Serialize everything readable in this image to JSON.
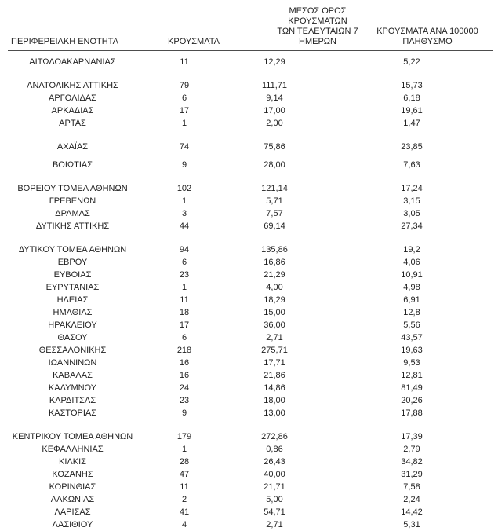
{
  "page": {
    "background": "#ffffff",
    "text_color": "#1f1f1f",
    "rule_color": "#4d4d4d"
  },
  "table": {
    "headers": {
      "region": "ΠΕΡΙΦΕΡΕΙΑΚΗ ΕΝΟΤΗΤΑ",
      "cases": "ΚΡΟΥΣΜΑΤΑ",
      "avg7_lines": [
        "ΜΕΣΟΣ ΟΡΟΣ ΚΡΟΥΣΜΑΤΩΝ",
        "ΤΩΝ ΤΕΛΕΥΤΑΙΩΝ 7",
        "ΗΜΕΡΩΝ"
      ],
      "per100k_lines": [
        "ΚΡΟΥΣΜΑΤΑ ΑΝΑ 100000",
        "ΠΛΗΘΥΣΜΟ"
      ]
    },
    "groups": [
      {
        "gap_before": "none",
        "rows": [
          {
            "region": "ΑΙΤΩΛΟΑΚΑΡΝΑΝΙΑΣ",
            "cases": "11",
            "avg7": "12,29",
            "per100k": "5,22"
          }
        ]
      },
      {
        "gap_before": "normal",
        "rows": [
          {
            "region": "ΑΝΑΤΟΛΙΚΗΣ ΑΤΤΙΚΗΣ",
            "cases": "79",
            "avg7": "111,71",
            "per100k": "15,73"
          },
          {
            "region": "ΑΡΓΟΛΙΔΑΣ",
            "cases": "6",
            "avg7": "9,14",
            "per100k": "6,18"
          },
          {
            "region": "ΑΡΚΑΔΙΑΣ",
            "cases": "17",
            "avg7": "17,00",
            "per100k": "19,61"
          },
          {
            "region": "ΑΡΤΑΣ",
            "cases": "1",
            "avg7": "2,00",
            "per100k": "1,47"
          }
        ]
      },
      {
        "gap_before": "normal",
        "rows": [
          {
            "region": "ΑΧΑΪΑΣ",
            "cases": "74",
            "avg7": "75,86",
            "per100k": "23,85"
          }
        ]
      },
      {
        "gap_before": "small",
        "rows": [
          {
            "region": "ΒΟΙΩΤΙΑΣ",
            "cases": "9",
            "avg7": "28,00",
            "per100k": "7,63"
          }
        ]
      },
      {
        "gap_before": "normal",
        "rows": [
          {
            "region": "ΒΟΡΕΙΟΥ ΤΟΜΕΑ ΑΘΗΝΩΝ",
            "cases": "102",
            "avg7": "121,14",
            "per100k": "17,24"
          },
          {
            "region": "ΓΡΕΒΕΝΩΝ",
            "cases": "1",
            "avg7": "5,71",
            "per100k": "3,15"
          },
          {
            "region": "ΔΡΑΜΑΣ",
            "cases": "3",
            "avg7": "7,57",
            "per100k": "3,05"
          },
          {
            "region": "ΔΥΤΙΚΗΣ ΑΤΤΙΚΗΣ",
            "cases": "44",
            "avg7": "69,14",
            "per100k": "27,34"
          }
        ]
      },
      {
        "gap_before": "normal",
        "rows": [
          {
            "region": "ΔΥΤΙΚΟΥ ΤΟΜΕΑ ΑΘΗΝΩΝ",
            "cases": "94",
            "avg7": "135,86",
            "per100k": "19,2"
          },
          {
            "region": "ΕΒΡΟΥ",
            "cases": "6",
            "avg7": "16,86",
            "per100k": "4,06"
          },
          {
            "region": "ΕΥΒΟΙΑΣ",
            "cases": "23",
            "avg7": "21,29",
            "per100k": "10,91"
          },
          {
            "region": "ΕΥΡΥΤΑΝΙΑΣ",
            "cases": "1",
            "avg7": "4,00",
            "per100k": "4,98"
          },
          {
            "region": "ΗΛΕΙΑΣ",
            "cases": "11",
            "avg7": "18,29",
            "per100k": "6,91"
          },
          {
            "region": "ΗΜΑΘΙΑΣ",
            "cases": "18",
            "avg7": "15,00",
            "per100k": "12,8"
          },
          {
            "region": "ΗΡΑΚΛΕΙΟΥ",
            "cases": "17",
            "avg7": "36,00",
            "per100k": "5,56"
          },
          {
            "region": "ΘΑΣΟΥ",
            "cases": "6",
            "avg7": "2,71",
            "per100k": "43,57"
          },
          {
            "region": "ΘΕΣΣΑΛΟΝΙΚΗΣ",
            "cases": "218",
            "avg7": "275,71",
            "per100k": "19,63"
          },
          {
            "region": "ΙΩΑΝΝΙΝΩΝ",
            "cases": "16",
            "avg7": "17,71",
            "per100k": "9,53"
          },
          {
            "region": "ΚΑΒΑΛΑΣ",
            "cases": "16",
            "avg7": "21,86",
            "per100k": "12,81"
          },
          {
            "region": "ΚΑΛΥΜΝΟΥ",
            "cases": "24",
            "avg7": "14,86",
            "per100k": "81,49"
          },
          {
            "region": "ΚΑΡΔΙΤΣΑΣ",
            "cases": "23",
            "avg7": "18,00",
            "per100k": "20,26"
          },
          {
            "region": "ΚΑΣΤΟΡΙΑΣ",
            "cases": "9",
            "avg7": "13,00",
            "per100k": "17,88"
          }
        ]
      },
      {
        "gap_before": "normal",
        "rows": [
          {
            "region": "ΚΕΝΤΡΙΚΟΥ ΤΟΜΕΑ ΑΘΗΝΩΝ",
            "cases": "179",
            "avg7": "272,86",
            "per100k": "17,39"
          },
          {
            "region": "ΚΕΦΑΛΛΗΝΙΑΣ",
            "cases": "1",
            "avg7": "0,86",
            "per100k": "2,79"
          },
          {
            "region": "ΚΙΛΚΙΣ",
            "cases": "28",
            "avg7": "26,43",
            "per100k": "34,82"
          },
          {
            "region": "ΚΟΖΑΝΗΣ",
            "cases": "47",
            "avg7": "40,00",
            "per100k": "31,29"
          },
          {
            "region": "ΚΟΡΙΝΘΙΑΣ",
            "cases": "11",
            "avg7": "21,71",
            "per100k": "7,58"
          },
          {
            "region": "ΛΑΚΩΝΙΑΣ",
            "cases": "2",
            "avg7": "5,00",
            "per100k": "2,24"
          },
          {
            "region": "ΛΑΡΙΣΑΣ",
            "cases": "41",
            "avg7": "54,71",
            "per100k": "14,42"
          },
          {
            "region": "ΛΑΣΙΘΙΟΥ",
            "cases": "4",
            "avg7": "2,71",
            "per100k": "5,31"
          }
        ]
      }
    ]
  }
}
